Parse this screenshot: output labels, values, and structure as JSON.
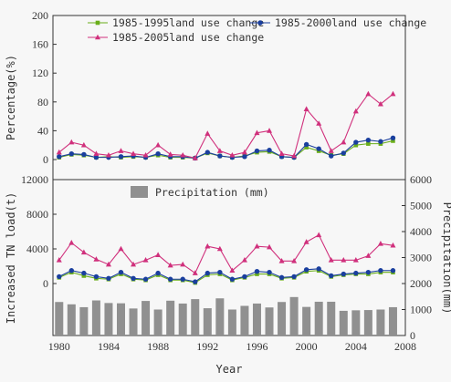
{
  "colors": {
    "series1": "#6aae1a",
    "series2": "#1a3f9e",
    "series3": "#d0307c",
    "bars": "#909090",
    "axis": "#333333"
  },
  "chart_data": [
    {
      "type": "line",
      "ylabel": "Percentage(%)",
      "ylim": [
        0,
        200
      ],
      "yticks": [
        "0",
        "40",
        "80",
        "120",
        "160",
        "200"
      ],
      "x": [
        1980,
        1981,
        1982,
        1983,
        1984,
        1985,
        1986,
        1987,
        1988,
        1989,
        1990,
        1991,
        1992,
        1993,
        1994,
        1995,
        1996,
        1997,
        1998,
        1999,
        2000,
        2001,
        2002,
        2003,
        2004,
        2005,
        2006,
        2007
      ],
      "legend": [
        "1985-1995land use change",
        "1985-2000land use change",
        "1985-2005land use change"
      ],
      "series": [
        {
          "name": "1985-1995land use change",
          "marker": "square",
          "values": [
            3,
            7,
            6,
            3,
            4,
            3,
            4,
            3,
            6,
            3,
            3,
            2,
            9,
            5,
            3,
            5,
            10,
            11,
            4,
            3,
            17,
            12,
            6,
            8,
            20,
            22,
            22,
            26
          ]
        },
        {
          "name": "1985-2000land use change",
          "marker": "circle",
          "values": [
            4,
            8,
            7,
            3,
            3,
            4,
            5,
            3,
            8,
            4,
            4,
            2,
            10,
            5,
            3,
            4,
            12,
            13,
            4,
            3,
            21,
            15,
            5,
            9,
            24,
            27,
            25,
            30
          ]
        },
        {
          "name": "1985-2005land use change",
          "marker": "triangle",
          "values": [
            10,
            24,
            20,
            8,
            6,
            12,
            8,
            6,
            20,
            7,
            6,
            2,
            36,
            12,
            6,
            10,
            37,
            40,
            8,
            5,
            70,
            50,
            12,
            24,
            67,
            91,
            77,
            91
          ]
        }
      ]
    },
    {
      "type": "line+bar",
      "ylabel_left": "Increased TN load(t)",
      "ylabel_right": "Precipitation(mm)",
      "xlabel": "Year",
      "ylim_left": [
        -6000,
        12000
      ],
      "yticks_left": [
        "0",
        "4000",
        "8000",
        "12000"
      ],
      "ylim_right": [
        0,
        6000
      ],
      "yticks_right": [
        "0",
        "1000",
        "2000",
        "3000",
        "4000",
        "5000",
        "6000"
      ],
      "xticks": [
        "1980",
        "1984",
        "1988",
        "1992",
        "1996",
        "2000",
        "2004",
        "2008"
      ],
      "xlim": [
        1979.5,
        2008
      ],
      "legend": [
        "Precipitation (mm)"
      ],
      "x": [
        1980,
        1981,
        1982,
        1983,
        1984,
        1985,
        1986,
        1987,
        1988,
        1989,
        1990,
        1991,
        1992,
        1993,
        1994,
        1995,
        1996,
        1997,
        1998,
        1999,
        2000,
        2001,
        2002,
        2003,
        2004,
        2005,
        2006,
        2007
      ],
      "precipitation": [
        1290,
        1200,
        1090,
        1350,
        1250,
        1240,
        1040,
        1330,
        1000,
        1340,
        1230,
        1400,
        1050,
        1430,
        1000,
        1140,
        1230,
        1080,
        1290,
        1480,
        1100,
        1300,
        1300,
        950,
        970,
        980,
        1000,
        1090
      ],
      "series": [
        {
          "name": "1985-1995land use change",
          "marker": "square",
          "values": [
            700,
            1300,
            900,
            600,
            500,
            1100,
            500,
            400,
            1000,
            400,
            400,
            100,
            1000,
            1100,
            400,
            700,
            1100,
            1100,
            600,
            700,
            1400,
            1500,
            800,
            1000,
            1100,
            1100,
            1300,
            1300
          ]
        },
        {
          "name": "1985-2000land use change",
          "marker": "circle",
          "values": [
            800,
            1500,
            1200,
            800,
            600,
            1300,
            600,
            500,
            1200,
            500,
            500,
            200,
            1200,
            1300,
            500,
            800,
            1400,
            1300,
            700,
            800,
            1600,
            1700,
            900,
            1100,
            1200,
            1300,
            1500,
            1500
          ]
        },
        {
          "name": "1985-2005land use change",
          "marker": "triangle",
          "values": [
            2700,
            4700,
            3600,
            2800,
            2200,
            4000,
            2200,
            2700,
            3300,
            2100,
            2200,
            1200,
            4300,
            4000,
            1500,
            2700,
            4300,
            4200,
            2600,
            2600,
            4800,
            5600,
            2700,
            2700,
            2700,
            3200,
            4600,
            4400
          ]
        }
      ]
    }
  ]
}
